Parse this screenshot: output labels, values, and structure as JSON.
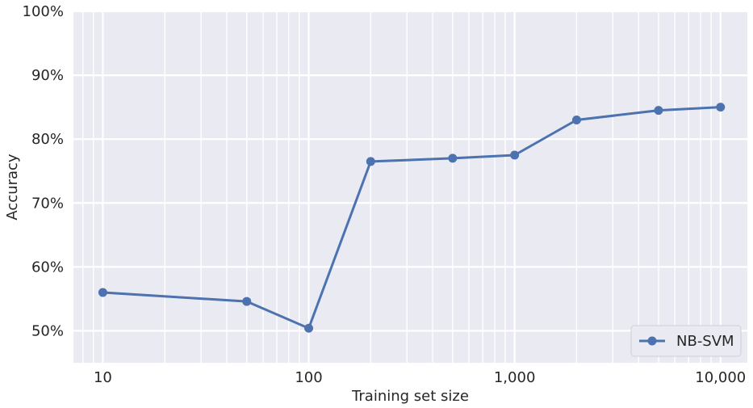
{
  "chart_data": {
    "type": "line",
    "xlabel": "Training set size",
    "ylabel": "Accuracy",
    "xscale": "log",
    "xlim": [
      7.2,
      13500
    ],
    "ylim": [
      45,
      100
    ],
    "grid": true,
    "legend_position": "bottom-right",
    "x_ticks": [
      {
        "value": 10,
        "label": "10"
      },
      {
        "value": 100,
        "label": "100"
      },
      {
        "value": 1000,
        "label": "1,000"
      },
      {
        "value": 10000,
        "label": "10,000"
      }
    ],
    "y_ticks": [
      {
        "value": 50,
        "label": "50%"
      },
      {
        "value": 60,
        "label": "60%"
      },
      {
        "value": 70,
        "label": "70%"
      },
      {
        "value": 80,
        "label": "80%"
      },
      {
        "value": 90,
        "label": "90%"
      },
      {
        "value": 100,
        "label": "100%"
      }
    ],
    "series": [
      {
        "name": "NB-SVM",
        "color": "#4c72b0",
        "x": [
          10,
          50,
          100,
          200,
          500,
          1000,
          2000,
          5000,
          10000
        ],
        "y": [
          56.0,
          54.6,
          50.4,
          76.5,
          77.0,
          77.5,
          83.0,
          84.5,
          85.0
        ]
      }
    ],
    "colors": {
      "plot_background": "#eaeaf2",
      "grid": "#ffffff",
      "text": "#262626"
    }
  }
}
